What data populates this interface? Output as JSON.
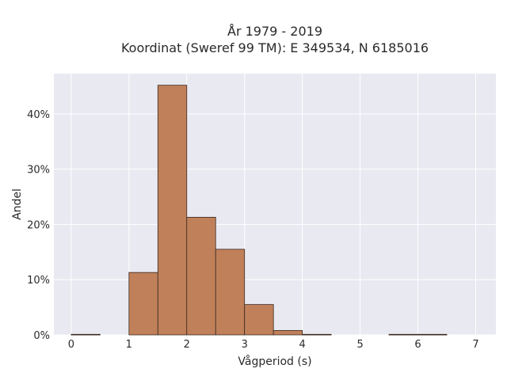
{
  "chart_data": {
    "type": "histogram",
    "title_line1": "År 1979 - 2019",
    "title_line2": "Koordinat (Sweref 99 TM): E 349534, N 6185016",
    "xlabel": "Vågperiod (s)",
    "ylabel": "Andel",
    "xlim": [
      -0.3,
      7.35
    ],
    "ylim": [
      0,
      47.3
    ],
    "x_ticks": [
      0,
      1,
      2,
      3,
      4,
      5,
      6,
      7
    ],
    "y_ticks": [
      0,
      10,
      20,
      30,
      40
    ],
    "y_tick_labels": [
      "0%",
      "10%",
      "20%",
      "30%",
      "40%"
    ],
    "bin_width": 0.5,
    "bins": [
      {
        "x0": 0.0,
        "x1": 0.5,
        "value": 0.1
      },
      {
        "x0": 0.5,
        "x1": 1.0,
        "value": 0.0
      },
      {
        "x0": 1.0,
        "x1": 1.5,
        "value": 11.3
      },
      {
        "x0": 1.5,
        "x1": 2.0,
        "value": 45.2
      },
      {
        "x0": 2.0,
        "x1": 2.5,
        "value": 21.3
      },
      {
        "x0": 2.5,
        "x1": 3.0,
        "value": 15.5
      },
      {
        "x0": 3.0,
        "x1": 3.5,
        "value": 5.5
      },
      {
        "x0": 3.5,
        "x1": 4.0,
        "value": 0.8
      },
      {
        "x0": 4.0,
        "x1": 4.5,
        "value": 0.1
      },
      {
        "x0": 4.5,
        "x1": 5.0,
        "value": 0.0
      },
      {
        "x0": 5.0,
        "x1": 5.5,
        "value": 0.0
      },
      {
        "x0": 5.5,
        "x1": 6.0,
        "value": 0.1
      },
      {
        "x0": 6.0,
        "x1": 6.5,
        "value": 0.1
      }
    ],
    "grid": true,
    "colors": {
      "plot_bg": "#e9e9f1",
      "grid": "#ffffff",
      "bar_fill": "#c0805a",
      "bar_edge": "#3a2a20"
    }
  }
}
